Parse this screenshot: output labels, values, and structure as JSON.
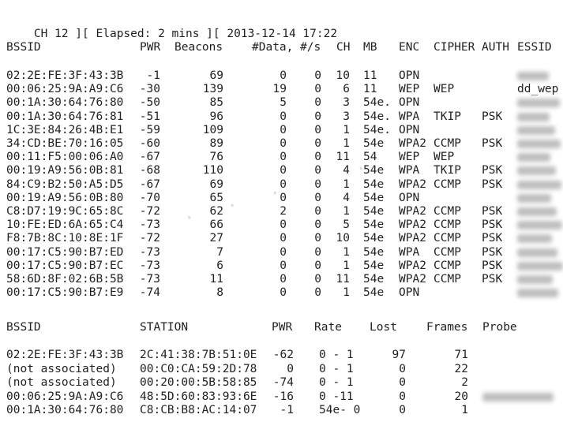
{
  "status": {
    "channel": "CH 12",
    "elapsed": "Elapsed: 2 mins",
    "datetime": "2013-12-14 17:22"
  },
  "ap_table": {
    "headers": [
      "BSSID",
      "PWR",
      "Beacons",
      "#Data,",
      "#/s",
      "CH",
      "MB",
      "ENC",
      "CIPHER",
      "AUTH",
      "ESSID"
    ],
    "rows": [
      {
        "bssid": "02:2E:FE:3F:43:3B",
        "pwr": "-1",
        "beacons": "69",
        "data": "0",
        "ps": "0",
        "ch": "10",
        "mb": "11",
        "enc": "OPN",
        "cipher": "",
        "auth": "",
        "essid": ""
      },
      {
        "bssid": "00:06:25:9A:A9:C6",
        "pwr": "-30",
        "beacons": "139",
        "data": "19",
        "ps": "0",
        "ch": "6",
        "mb": "11",
        "enc": "WEP",
        "cipher": "WEP",
        "auth": "",
        "essid": "dd_wep"
      },
      {
        "bssid": "00:1A:30:64:76:80",
        "pwr": "-50",
        "beacons": "85",
        "data": "5",
        "ps": "0",
        "ch": "3",
        "mb": "54e.",
        "enc": "OPN",
        "cipher": "",
        "auth": "",
        "essid": ""
      },
      {
        "bssid": "00:1A:30:64:76:81",
        "pwr": "-51",
        "beacons": "96",
        "data": "0",
        "ps": "0",
        "ch": "3",
        "mb": "54e.",
        "enc": "WPA",
        "cipher": "TKIP",
        "auth": "PSK",
        "essid": ""
      },
      {
        "bssid": "1C:3E:84:26:4B:E1",
        "pwr": "-59",
        "beacons": "109",
        "data": "0",
        "ps": "0",
        "ch": "1",
        "mb": "54e.",
        "enc": "OPN",
        "cipher": "",
        "auth": "",
        "essid": ""
      },
      {
        "bssid": "34:CD:BE:70:16:05",
        "pwr": "-60",
        "beacons": "89",
        "data": "0",
        "ps": "0",
        "ch": "1",
        "mb": "54e",
        "enc": "WPA2",
        "cipher": "CCMP",
        "auth": "PSK",
        "essid": ""
      },
      {
        "bssid": "00:11:F5:00:06:A0",
        "pwr": "-67",
        "beacons": "76",
        "data": "0",
        "ps": "0",
        "ch": "11",
        "mb": "54",
        "enc": "WEP",
        "cipher": "WEP",
        "auth": "",
        "essid": ""
      },
      {
        "bssid": "00:19:A9:56:0B:81",
        "pwr": "-68",
        "beacons": "110",
        "data": "0",
        "ps": "0",
        "ch": "4",
        "mb": "54e",
        "enc": "WPA",
        "cipher": "TKIP",
        "auth": "PSK",
        "essid": ""
      },
      {
        "bssid": "84:C9:B2:50:A5:D5",
        "pwr": "-67",
        "beacons": "69",
        "data": "0",
        "ps": "0",
        "ch": "1",
        "mb": "54e",
        "enc": "WPA2",
        "cipher": "CCMP",
        "auth": "PSK",
        "essid": ""
      },
      {
        "bssid": "00:19:A9:56:0B:80",
        "pwr": "-70",
        "beacons": "65",
        "data": "0",
        "ps": "0",
        "ch": "4",
        "mb": "54e",
        "enc": "OPN",
        "cipher": "",
        "auth": "",
        "essid": ""
      },
      {
        "bssid": "C8:D7:19:9C:65:8C",
        "pwr": "-72",
        "beacons": "62",
        "data": "2",
        "ps": "0",
        "ch": "1",
        "mb": "54e",
        "enc": "WPA2",
        "cipher": "CCMP",
        "auth": "PSK",
        "essid": ""
      },
      {
        "bssid": "10:FE:ED:6A:65:C4",
        "pwr": "-73",
        "beacons": "66",
        "data": "0",
        "ps": "0",
        "ch": "5",
        "mb": "54e",
        "enc": "WPA2",
        "cipher": "CCMP",
        "auth": "PSK",
        "essid": ""
      },
      {
        "bssid": "F8:7B:8C:10:8E:1F",
        "pwr": "-72",
        "beacons": "27",
        "data": "0",
        "ps": "0",
        "ch": "10",
        "mb": "54e",
        "enc": "WPA2",
        "cipher": "CCMP",
        "auth": "PSK",
        "essid": ""
      },
      {
        "bssid": "00:17:C5:90:B7:ED",
        "pwr": "-73",
        "beacons": "7",
        "data": "0",
        "ps": "0",
        "ch": "1",
        "mb": "54e",
        "enc": "WPA",
        "cipher": "CCMP",
        "auth": "PSK",
        "essid": ""
      },
      {
        "bssid": "00:17:C5:90:B7:EC",
        "pwr": "-73",
        "beacons": "6",
        "data": "0",
        "ps": "0",
        "ch": "1",
        "mb": "54e",
        "enc": "WPA2",
        "cipher": "CCMP",
        "auth": "PSK",
        "essid": ""
      },
      {
        "bssid": "58:6D:8F:02:6B:5B",
        "pwr": "-73",
        "beacons": "11",
        "data": "0",
        "ps": "0",
        "ch": "11",
        "mb": "54e",
        "enc": "WPA2",
        "cipher": "CCMP",
        "auth": "PSK",
        "essid": ""
      },
      {
        "bssid": "00:17:C5:90:B7:E9",
        "pwr": "-74",
        "beacons": "8",
        "data": "0",
        "ps": "0",
        "ch": "1",
        "mb": "54e",
        "enc": "OPN",
        "cipher": "",
        "auth": "",
        "essid": ""
      }
    ]
  },
  "station_table": {
    "headers": [
      "BSSID",
      "STATION",
      "PWR",
      "Rate",
      "Lost",
      "Frames",
      "Probe"
    ],
    "rows": [
      {
        "bssid": "02:2E:FE:3F:43:3B",
        "station": "2C:41:38:7B:51:0E",
        "pwr": "-62",
        "rate": "0 - 1",
        "lost": "97",
        "frames": "71",
        "probe": ""
      },
      {
        "bssid": "(not associated)",
        "station": "00:C0:CA:59:2D:78",
        "pwr": "0",
        "rate": "0 - 1",
        "lost": "0",
        "frames": "22",
        "probe": ""
      },
      {
        "bssid": "(not associated)",
        "station": "00:20:00:5B:58:85",
        "pwr": "-74",
        "rate": "0 - 1",
        "lost": "0",
        "frames": "2",
        "probe": ""
      },
      {
        "bssid": "00:06:25:9A:A9:C6",
        "station": "48:5D:60:83:93:6E",
        "pwr": "-16",
        "rate": "0 -11",
        "lost": "0",
        "frames": "20",
        "probe": ""
      },
      {
        "bssid": "00:1A:30:64:76:80",
        "station": "C8:CB:B8:AC:14:07",
        "pwr": "-1",
        "rate": "54e- 0",
        "lost": "0",
        "frames": "1",
        "probe": ""
      }
    ]
  }
}
